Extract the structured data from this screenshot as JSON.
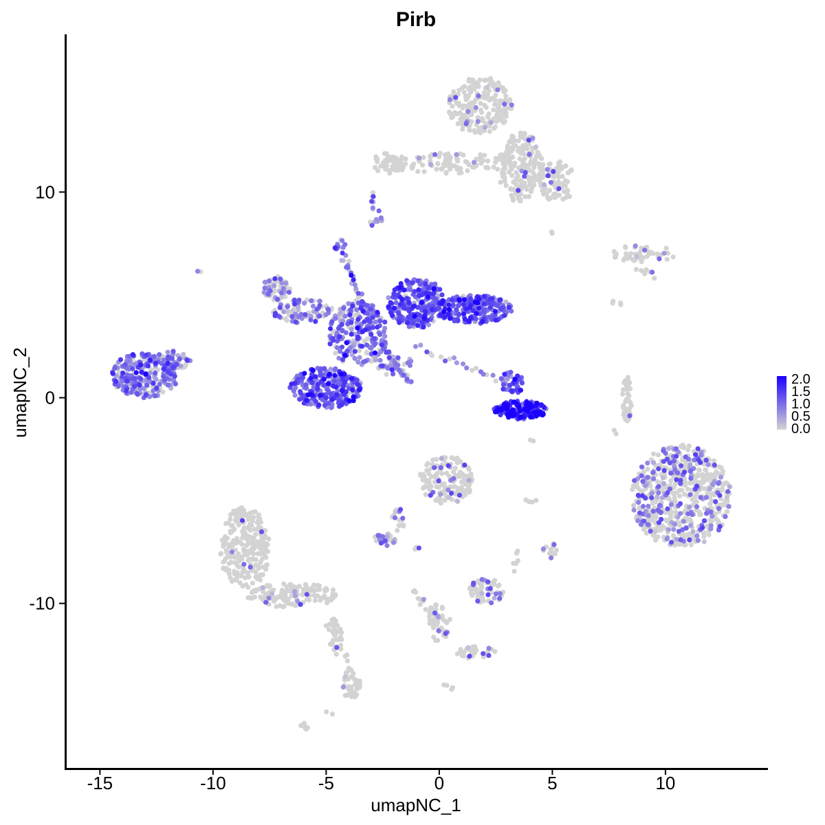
{
  "chart_data": {
    "type": "scatter",
    "title": "Pirb",
    "xlabel": "umapNC_1",
    "ylabel": "umapNC_2",
    "xlim": [
      -16.5,
      14.5
    ],
    "ylim": [
      -18.0,
      17.6
    ],
    "x_ticks": [
      -15,
      -10,
      -5,
      0,
      5,
      10
    ],
    "x_tick_labels": [
      "-15",
      "-10",
      "-5",
      "0",
      "5",
      "10"
    ],
    "y_ticks": [
      -10,
      0,
      10
    ],
    "y_tick_labels": [
      "-10",
      "0",
      "10"
    ],
    "grid": false,
    "color_scale": {
      "low": "#d3d3d3",
      "high": "#1c00ff",
      "min": 0.0,
      "max": 2.0,
      "ticks": [
        "2.0",
        "1.5",
        "1.0",
        "0.5",
        "0.0"
      ],
      "legend_position": "right"
    },
    "clusters": [
      {
        "cx": 1.8,
        "cy": 14.2,
        "rx": 1.4,
        "ry": 1.4,
        "n": 220,
        "expr": 0.03
      },
      {
        "cx": 3.6,
        "cy": 11.2,
        "rx": 1.0,
        "ry": 1.7,
        "n": 180,
        "expr": 0.03
      },
      {
        "cx": 0.3,
        "cy": 11.4,
        "rx": 2.9,
        "ry": 0.5,
        "n": 110,
        "expr": 0.03
      },
      {
        "cx": -2.3,
        "cy": 11.4,
        "rx": 0.7,
        "ry": 0.5,
        "n": 40,
        "expr": 0.03
      },
      {
        "cx": 5.2,
        "cy": 10.5,
        "rx": 0.8,
        "ry": 1.0,
        "n": 80,
        "expr": 0.03
      },
      {
        "cx": 9.0,
        "cy": 7.0,
        "rx": 1.5,
        "ry": 0.4,
        "n": 50,
        "expr": 0.05
      },
      {
        "cx": -2.8,
        "cy": 8.6,
        "rx": 0.3,
        "ry": 0.3,
        "n": 10,
        "expr": 0.8
      },
      {
        "cx": -4.4,
        "cy": 7.4,
        "rx": 0.25,
        "ry": 0.3,
        "n": 10,
        "expr": 0.9
      },
      {
        "cx": -13.0,
        "cy": 1.1,
        "rx": 1.5,
        "ry": 1.1,
        "n": 260,
        "expr": 0.85
      },
      {
        "cx": -11.8,
        "cy": 1.8,
        "rx": 0.8,
        "ry": 0.5,
        "n": 40,
        "expr": 0.8
      },
      {
        "cx": -7.2,
        "cy": 5.3,
        "rx": 0.6,
        "ry": 0.6,
        "n": 60,
        "expr": 0.55
      },
      {
        "cx": -6.0,
        "cy": 4.2,
        "rx": 1.4,
        "ry": 0.6,
        "n": 80,
        "expr": 0.75
      },
      {
        "cx": -5.0,
        "cy": 0.5,
        "rx": 1.6,
        "ry": 1.0,
        "n": 280,
        "expr": 1.0
      },
      {
        "cx": -3.6,
        "cy": 3.1,
        "rx": 1.3,
        "ry": 1.6,
        "n": 220,
        "expr": 0.85
      },
      {
        "cx": -1.0,
        "cy": 4.6,
        "rx": 1.3,
        "ry": 1.2,
        "n": 260,
        "expr": 1.15
      },
      {
        "cx": 1.5,
        "cy": 4.3,
        "rx": 1.7,
        "ry": 0.7,
        "n": 220,
        "expr": 1.05
      },
      {
        "cx": -2.0,
        "cy": 1.6,
        "rx": 0.9,
        "ry": 0.5,
        "n": 30,
        "expr": 0.7
      },
      {
        "cx": 3.2,
        "cy": 0.7,
        "rx": 0.5,
        "ry": 0.6,
        "n": 40,
        "expr": 1.2
      },
      {
        "cx": 3.6,
        "cy": -0.6,
        "rx": 1.2,
        "ry": 0.45,
        "n": 140,
        "expr": 1.7
      },
      {
        "cx": 8.3,
        "cy": -0.1,
        "rx": 0.2,
        "ry": 1.2,
        "n": 40,
        "expr": 0.02
      },
      {
        "cx": 10.7,
        "cy": -4.8,
        "rx": 2.2,
        "ry": 2.5,
        "n": 600,
        "expr": 0.2
      },
      {
        "cx": 0.3,
        "cy": -4.0,
        "rx": 1.2,
        "ry": 1.2,
        "n": 160,
        "expr": 0.08
      },
      {
        "cx": -2.4,
        "cy": -6.9,
        "rx": 0.5,
        "ry": 0.3,
        "n": 30,
        "expr": 0.3
      },
      {
        "cx": -1.8,
        "cy": -6.0,
        "rx": 0.3,
        "ry": 0.6,
        "n": 20,
        "expr": 0.2
      },
      {
        "cx": -8.6,
        "cy": -7.3,
        "rx": 1.1,
        "ry": 2.0,
        "n": 260,
        "expr": 0.04
      },
      {
        "cx": -6.5,
        "cy": -9.6,
        "rx": 2.0,
        "ry": 0.6,
        "n": 140,
        "expr": 0.04
      },
      {
        "cx": -3.9,
        "cy": -13.9,
        "rx": 0.4,
        "ry": 0.8,
        "n": 50,
        "expr": 0.05
      },
      {
        "cx": -4.6,
        "cy": -11.5,
        "rx": 0.3,
        "ry": 1.0,
        "n": 30,
        "expr": 0.03
      },
      {
        "cx": 2.1,
        "cy": -9.4,
        "rx": 0.8,
        "ry": 0.6,
        "n": 60,
        "expr": 0.15
      },
      {
        "cx": 0.0,
        "cy": -10.9,
        "rx": 0.5,
        "ry": 1.0,
        "n": 40,
        "expr": 0.05
      },
      {
        "cx": 1.5,
        "cy": -12.4,
        "rx": 1.1,
        "ry": 0.3,
        "n": 30,
        "expr": 0.05
      },
      {
        "cx": 4.9,
        "cy": -7.4,
        "rx": 0.3,
        "ry": 0.4,
        "n": 15,
        "expr": 0.1
      },
      {
        "cx": -6.0,
        "cy": -16.0,
        "rx": 0.2,
        "ry": 0.2,
        "n": 8,
        "expr": 0.0
      }
    ],
    "strands": [
      {
        "from": [
          -4.2,
          7.0
        ],
        "to": [
          -2.9,
          3.0
        ],
        "n": 40,
        "expr": 0.8
      },
      {
        "from": [
          -2.5,
          2.6
        ],
        "to": [
          -1.3,
          0.7
        ],
        "n": 35,
        "expr": 0.75
      },
      {
        "from": [
          -1.0,
          2.5
        ],
        "to": [
          2.8,
          0.8
        ],
        "n": 20,
        "expr": 0.3
      },
      {
        "from": [
          -10.6,
          6.2
        ],
        "to": [
          -10.6,
          6.2
        ],
        "n": 2,
        "expr": 0.8
      },
      {
        "from": [
          -3.0,
          10.0
        ],
        "to": [
          -2.8,
          9.0
        ],
        "n": 8,
        "expr": 0.3
      },
      {
        "from": [
          8.8,
          6.3
        ],
        "to": [
          9.5,
          6.0
        ],
        "n": 8,
        "expr": 0.03
      },
      {
        "from": [
          7.6,
          4.7
        ],
        "to": [
          8.0,
          4.6
        ],
        "n": 4,
        "expr": 0.02
      },
      {
        "from": [
          7.8,
          -1.7
        ],
        "to": [
          7.8,
          -1.7
        ],
        "n": 2,
        "expr": 0.02
      },
      {
        "from": [
          4.2,
          -5.0
        ],
        "to": [
          3.8,
          -5.0
        ],
        "n": 4,
        "expr": 0.02
      },
      {
        "from": [
          -1.0,
          -7.3
        ],
        "to": [
          -1.0,
          -7.3
        ],
        "n": 3,
        "expr": 0.3
      },
      {
        "from": [
          -1.1,
          -9.3
        ],
        "to": [
          0.1,
          -11.4
        ],
        "n": 20,
        "expr": 0.05
      },
      {
        "from": [
          -4.9,
          -11.2
        ],
        "to": [
          -4.0,
          -12.8
        ],
        "n": 10,
        "expr": 0.02
      },
      {
        "from": [
          3.3,
          -8.4
        ],
        "to": [
          3.4,
          -7.5
        ],
        "n": 6,
        "expr": 0.05
      },
      {
        "from": [
          0.3,
          -14.0
        ],
        "to": [
          0.6,
          -14.1
        ],
        "n": 4,
        "expr": 0.0
      },
      {
        "from": [
          -4.8,
          -15.4
        ],
        "to": [
          -4.8,
          -15.4
        ],
        "n": 2,
        "expr": 0.0
      },
      {
        "from": [
          4.1,
          -2.1
        ],
        "to": [
          4.1,
          -2.1
        ],
        "n": 2,
        "expr": 0.2
      },
      {
        "from": [
          5.0,
          8.0
        ],
        "to": [
          5.0,
          8.0
        ],
        "n": 2,
        "expr": 0.05
      }
    ]
  }
}
